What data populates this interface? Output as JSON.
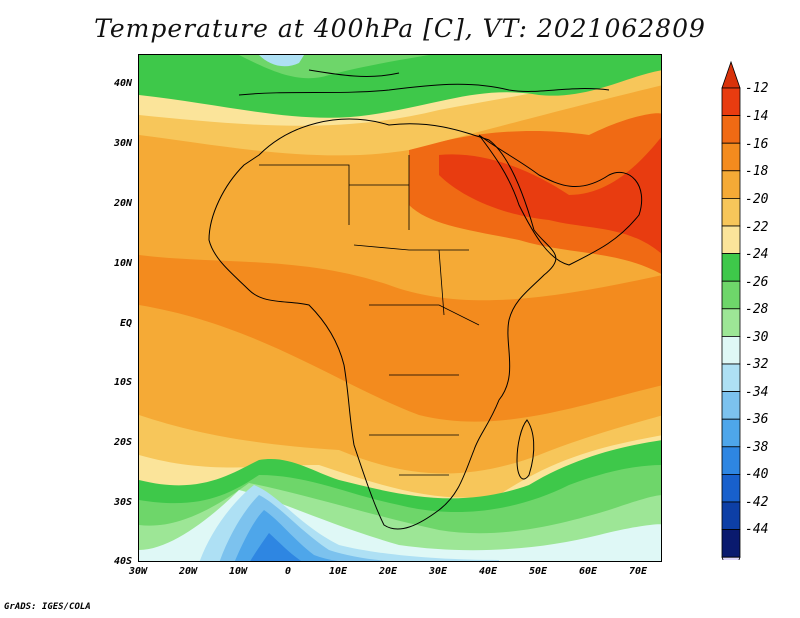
{
  "title": "Temperature at 400hPa [C], VT: 2021062809",
  "footer": "GrADS: IGES/COLA",
  "map": {
    "region": "Africa",
    "lon_range": [
      -30,
      75
    ],
    "lat_range": [
      -40,
      45
    ],
    "x_ticks": [
      "30W",
      "20W",
      "10W",
      "0",
      "10E",
      "20E",
      "30E",
      "40E",
      "50E",
      "60E",
      "70E"
    ],
    "y_ticks": [
      "40N",
      "30N",
      "20N",
      "10N",
      "EQ",
      "10S",
      "20S",
      "30S",
      "40S"
    ]
  },
  "colorbar": {
    "labels": [
      "-12",
      "-14",
      "-16",
      "-18",
      "-20",
      "-22",
      "-24",
      "-26",
      "-28",
      "-30",
      "-32",
      "-34",
      "-36",
      "-38",
      "-40",
      "-42",
      "-44"
    ],
    "colors": [
      "#e83c10",
      "#f06a14",
      "#f38b1e",
      "#f5aa36",
      "#f7c65a",
      "#fbe49a",
      "#3ec84a",
      "#6ed66a",
      "#9de696",
      "#dff8f6",
      "#aee0f4",
      "#7cc2ee",
      "#4ea6ea",
      "#2e86e2",
      "#1860cc",
      "#0d3fa6",
      "#0a1a6e"
    ],
    "top_arrow_color": "#d8320a",
    "bottom_arrow_color": "#e0d8f8"
  }
}
